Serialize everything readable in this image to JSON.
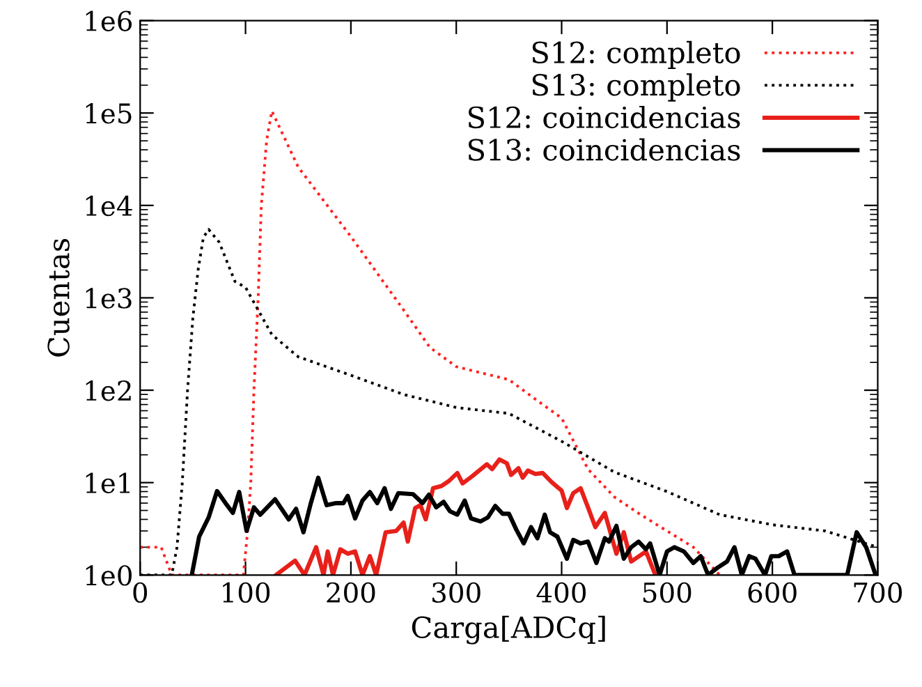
{
  "chart_data": {
    "type": "line",
    "xlabel": "Carga[ADCq]",
    "ylabel": "Cuentas",
    "log": "y",
    "legend": "top right",
    "grid": false,
    "xlim": [
      0,
      700
    ],
    "xticks": [
      0,
      100,
      200,
      300,
      400,
      500,
      600,
      700
    ],
    "ylim": [
      1,
      1000000
    ],
    "yticks": [
      {
        "value": 1,
        "label": "1e0"
      },
      {
        "value": 10,
        "label": "1e1"
      },
      {
        "value": 100,
        "label": "1e2"
      },
      {
        "value": 1000,
        "label": "1e3"
      },
      {
        "value": 10000,
        "label": "1e4"
      },
      {
        "value": 100000,
        "label": "1e5"
      },
      {
        "value": 1000000,
        "label": "1e6"
      }
    ],
    "series": [
      {
        "name": "S12: completo",
        "color": "#ff2020",
        "line_style": "dotted",
        "x": [
          0,
          10,
          20,
          30,
          60,
          90,
          98,
          102,
          105,
          108,
          112,
          115,
          120,
          125,
          150,
          200,
          250,
          275,
          300,
          350,
          375,
          400,
          425,
          450,
          475,
          500,
          525,
          550
        ],
        "values": [
          2,
          2,
          2,
          1,
          1,
          1,
          1,
          3,
          10,
          100,
          1000,
          10000,
          50000,
          105000,
          26000,
          4600,
          740,
          290,
          180,
          130,
          80,
          50,
          14,
          7,
          4.5,
          3,
          2,
          1
        ]
      },
      {
        "name": "S13: completo",
        "color": "#000000",
        "line_style": "dotted",
        "x": [
          0,
          20,
          30,
          35,
          40,
          45,
          50,
          55,
          60,
          65,
          75,
          90,
          100,
          125,
          150,
          200,
          250,
          300,
          350,
          400,
          450,
          500,
          550,
          600,
          650,
          700
        ],
        "values": [
          1,
          1,
          1,
          2,
          10,
          100,
          600,
          2000,
          4500,
          5500,
          4000,
          1500,
          1300,
          400,
          230,
          145,
          90,
          65,
          56,
          28,
          13,
          8,
          4.5,
          3.5,
          3,
          2
        ]
      },
      {
        "name": "S12: coincidencias",
        "color": "#e8201a",
        "line_style": "solid",
        "x": [
          129,
          147,
          156,
          167,
          174,
          178,
          183,
          190,
          197,
          204,
          211,
          218,
          224,
          233,
          243,
          250,
          254,
          261,
          266,
          271,
          278,
          286,
          293,
          301,
          306,
          315,
          329,
          334,
          341,
          348,
          352,
          359,
          363,
          368,
          375,
          382,
          391,
          400,
          405,
          411,
          418,
          425,
          432,
          441,
          452,
          459,
          466,
          480,
          489
        ],
        "values": [
          1,
          1.43,
          1,
          2,
          1,
          1.8,
          1,
          1.9,
          1.7,
          1.8,
          1,
          1.6,
          1,
          2.9,
          3,
          3.7,
          2.3,
          5.3,
          5.7,
          4,
          8.7,
          9.2,
          10.4,
          12.7,
          9.8,
          11.7,
          15.8,
          14,
          17.8,
          16.2,
          12.1,
          14.3,
          11.3,
          13.5,
          12.4,
          12.7,
          10,
          8.2,
          5.3,
          7.7,
          8.7,
          5.4,
          3.3,
          4.7,
          1.7,
          2.9,
          1.4,
          1.8,
          1
        ]
      },
      {
        "name": "S13: coincidencias",
        "color": "#000000",
        "line_style": "solid",
        "x": [
          49,
          56,
          65,
          73,
          81,
          88,
          94,
          101,
          108,
          114,
          128,
          141,
          148,
          155,
          162,
          169,
          177,
          186,
          193,
          197,
          204,
          211,
          218,
          225,
          232,
          238,
          245,
          259,
          268,
          274,
          281,
          288,
          294,
          301,
          308,
          314,
          323,
          330,
          337,
          344,
          350,
          357,
          364,
          371,
          377,
          384,
          389,
          396,
          405,
          411,
          418,
          425,
          433,
          441,
          445,
          452,
          459,
          466,
          473,
          480,
          484,
          493,
          500,
          507,
          516,
          525,
          532,
          539,
          548,
          557,
          564,
          571,
          578,
          584,
          593,
          599,
          606,
          614,
          621,
          671,
          680,
          689,
          698
        ],
        "values": [
          1,
          2.6,
          4.2,
          8.1,
          6,
          4.7,
          7.9,
          3,
          5.4,
          4.5,
          6.6,
          4,
          5.2,
          2.9,
          6,
          11.3,
          5.7,
          6,
          6,
          7.2,
          4.1,
          6.4,
          7.9,
          6,
          8.7,
          5.2,
          7.7,
          7.5,
          6,
          7.4,
          5.4,
          6.2,
          4.9,
          4.5,
          6.4,
          4.1,
          3.8,
          4.2,
          5.6,
          4.6,
          4.6,
          3.1,
          2.2,
          3.3,
          2.5,
          4.5,
          2.9,
          2.6,
          1.5,
          2.4,
          2.2,
          2.3,
          1.35,
          2.5,
          2.3,
          3.4,
          1.5,
          2,
          2.3,
          1.9,
          2.2,
          1,
          1.8,
          2,
          1.8,
          1.35,
          1.6,
          1,
          1.2,
          1.4,
          2,
          1,
          1.6,
          1.5,
          1,
          1.6,
          1.6,
          1.8,
          1,
          1,
          2.9,
          2,
          1
        ]
      }
    ]
  }
}
